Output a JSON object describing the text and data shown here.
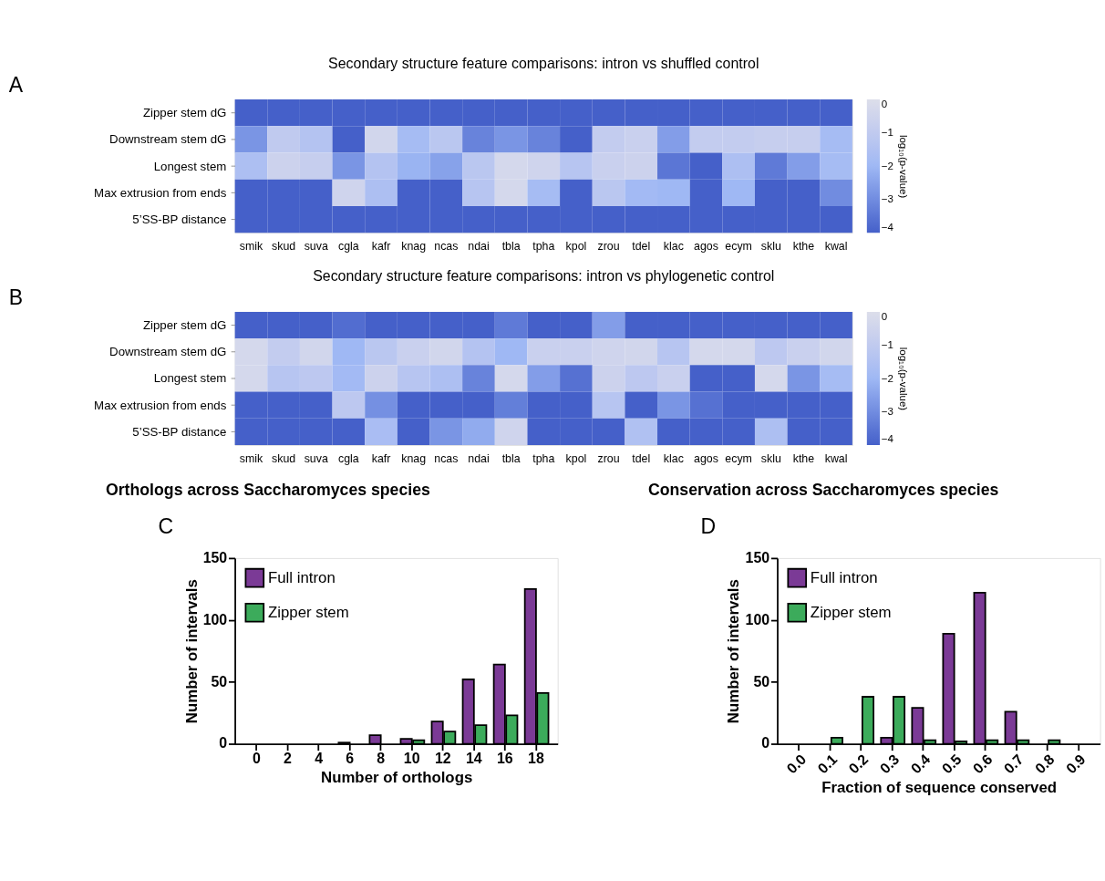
{
  "chart_data": [
    {
      "type": "heatmap",
      "title": "Secondary structure feature comparisons: intron vs shuffled control",
      "annotations": [
        "A"
      ],
      "clabel": "log₁₀(p-value)",
      "clim": [
        -4,
        0
      ],
      "cticks": [
        -4,
        -3,
        -2,
        -1,
        0
      ],
      "categories": [
        "smik",
        "skud",
        "suva",
        "cgla",
        "kafr",
        "knag",
        "ncas",
        "ndai",
        "tbla",
        "tpha",
        "kpol",
        "zrou",
        "tdel",
        "klac",
        "agos",
        "ecym",
        "sklu",
        "kthe",
        "kwal"
      ],
      "y_categories": [
        "Zipper stem dG",
        "Downstream stem dG",
        "Longest stem",
        "Max extrusion from ends",
        "5’SS-BP distance"
      ],
      "cells": [
        [
          -4,
          -4,
          -4,
          -4,
          -4,
          -4,
          -4,
          -4,
          -4,
          -4,
          -4,
          -4,
          -4,
          -4,
          -4,
          -4,
          -4,
          -4,
          -4
        ],
        [
          -2.8,
          -1.0,
          -1.4,
          -4,
          -0.4,
          -1.8,
          -1.2,
          -3.2,
          -2.8,
          -3.2,
          -4,
          -0.9,
          -0.7,
          -2.6,
          -0.9,
          -0.9,
          -0.8,
          -0.8,
          -1.8
        ],
        [
          -1.6,
          -0.6,
          -0.8,
          -2.8,
          -1.4,
          -2.1,
          -2.5,
          -1.2,
          -0.3,
          -0.5,
          -1.3,
          -0.7,
          -0.6,
          -3.5,
          -4,
          -1.6,
          -3.4,
          -2.6,
          -1.8
        ],
        [
          -4,
          -4,
          -4,
          -0.5,
          -1.6,
          -4,
          -4,
          -1.3,
          -0.3,
          -1.8,
          -4,
          -1.2,
          -1.9,
          -2.0,
          -4,
          -2.0,
          -4,
          -4,
          -3.0
        ],
        [
          -4,
          -4,
          -4,
          -4,
          -4,
          -4,
          -4,
          -4,
          -4,
          -4,
          -4,
          -4,
          -4,
          -4,
          -4,
          -4,
          -4,
          -4,
          -4
        ]
      ]
    },
    {
      "type": "heatmap",
      "title": "Secondary structure feature comparisons: intron vs phylogenetic control",
      "annotations": [
        "B"
      ],
      "clabel": "log₁₀(p-value)",
      "clim": [
        -4,
        0
      ],
      "cticks": [
        -4,
        -3,
        -2,
        -1,
        0
      ],
      "categories": [
        "smik",
        "skud",
        "suva",
        "cgla",
        "kafr",
        "knag",
        "ncas",
        "ndai",
        "tbla",
        "tpha",
        "kpol",
        "zrou",
        "tdel",
        "klac",
        "agos",
        "ecym",
        "sklu",
        "kthe",
        "kwal"
      ],
      "y_categories": [
        "Zipper stem dG",
        "Downstream stem dG",
        "Longest stem",
        "Max extrusion from ends",
        "5’SS-BP distance"
      ],
      "cells": [
        [
          -4,
          -4,
          -4,
          -3.7,
          -4,
          -4,
          -4,
          -4,
          -3.4,
          -4,
          -4,
          -2.6,
          -4,
          -4,
          -4,
          -4,
          -4,
          -4,
          -4
        ],
        [
          -0.3,
          -0.9,
          -0.4,
          -2.0,
          -1.2,
          -0.7,
          -0.4,
          -1.4,
          -2.0,
          -0.7,
          -0.7,
          -0.5,
          -0.4,
          -1.3,
          -0.3,
          -0.3,
          -1.1,
          -0.7,
          -0.4
        ],
        [
          -0.3,
          -1.3,
          -1.1,
          -1.9,
          -0.6,
          -1.3,
          -1.6,
          -3.2,
          -0.3,
          -2.6,
          -3.6,
          -0.6,
          -1.1,
          -0.7,
          -4,
          -4,
          -0.3,
          -2.8,
          -1.8
        ],
        [
          -4,
          -4,
          -4,
          -1.1,
          -2.9,
          -4,
          -4,
          -4,
          -3.3,
          -4,
          -4,
          -1.3,
          -4,
          -2.8,
          -3.6,
          -4,
          -4,
          -4,
          -4
        ],
        [
          -4,
          -4,
          -4,
          -4,
          -1.7,
          -4,
          -2.8,
          -2.3,
          -0.5,
          -4,
          -4,
          -4,
          -1.5,
          -4,
          -4,
          -4,
          -1.6,
          -4,
          -4
        ]
      ]
    },
    {
      "type": "bar",
      "title": "Orthologs across Saccharomyces species",
      "annotations": [
        "C"
      ],
      "xlabel": "Number of orthologs",
      "ylabel": "Number of intervals",
      "categories": [
        "0",
        "2",
        "4",
        "6",
        "8",
        "10",
        "12",
        "14",
        "16",
        "18"
      ],
      "ylim": [
        0,
        150
      ],
      "yticks": [
        0,
        50,
        100,
        150
      ],
      "legend": "top left",
      "grid": false,
      "series": [
        {
          "name": "Full intron",
          "color": "#7b3a96",
          "values": [
            0,
            0,
            0,
            1,
            7,
            4,
            18,
            52,
            64,
            125
          ]
        },
        {
          "name": "Zipper stem",
          "color": "#3cab5b",
          "values": [
            0,
            0,
            0,
            0,
            0,
            3,
            10,
            15,
            23,
            41
          ]
        }
      ]
    },
    {
      "type": "bar",
      "title": "Conservation across Saccharomyces species",
      "annotations": [
        "D"
      ],
      "xlabel": "Fraction of sequence conserved",
      "ylabel": "Number of intervals",
      "categories": [
        "0.0",
        "0.1",
        "0.2",
        "0.3",
        "0.4",
        "0.5",
        "0.6",
        "0.7",
        "0.8",
        "0.9"
      ],
      "ylim": [
        0,
        150
      ],
      "yticks": [
        0,
        50,
        100,
        150
      ],
      "legend": "top left",
      "grid": false,
      "series": [
        {
          "name": "Full intron",
          "color": "#7b3a96",
          "values": [
            0,
            0,
            0,
            5,
            29,
            89,
            122,
            26,
            0,
            0
          ]
        },
        {
          "name": "Zipper stem",
          "color": "#3cab5b",
          "values": [
            0,
            5,
            38,
            38,
            3,
            2,
            3,
            3,
            3,
            0
          ]
        }
      ]
    }
  ]
}
